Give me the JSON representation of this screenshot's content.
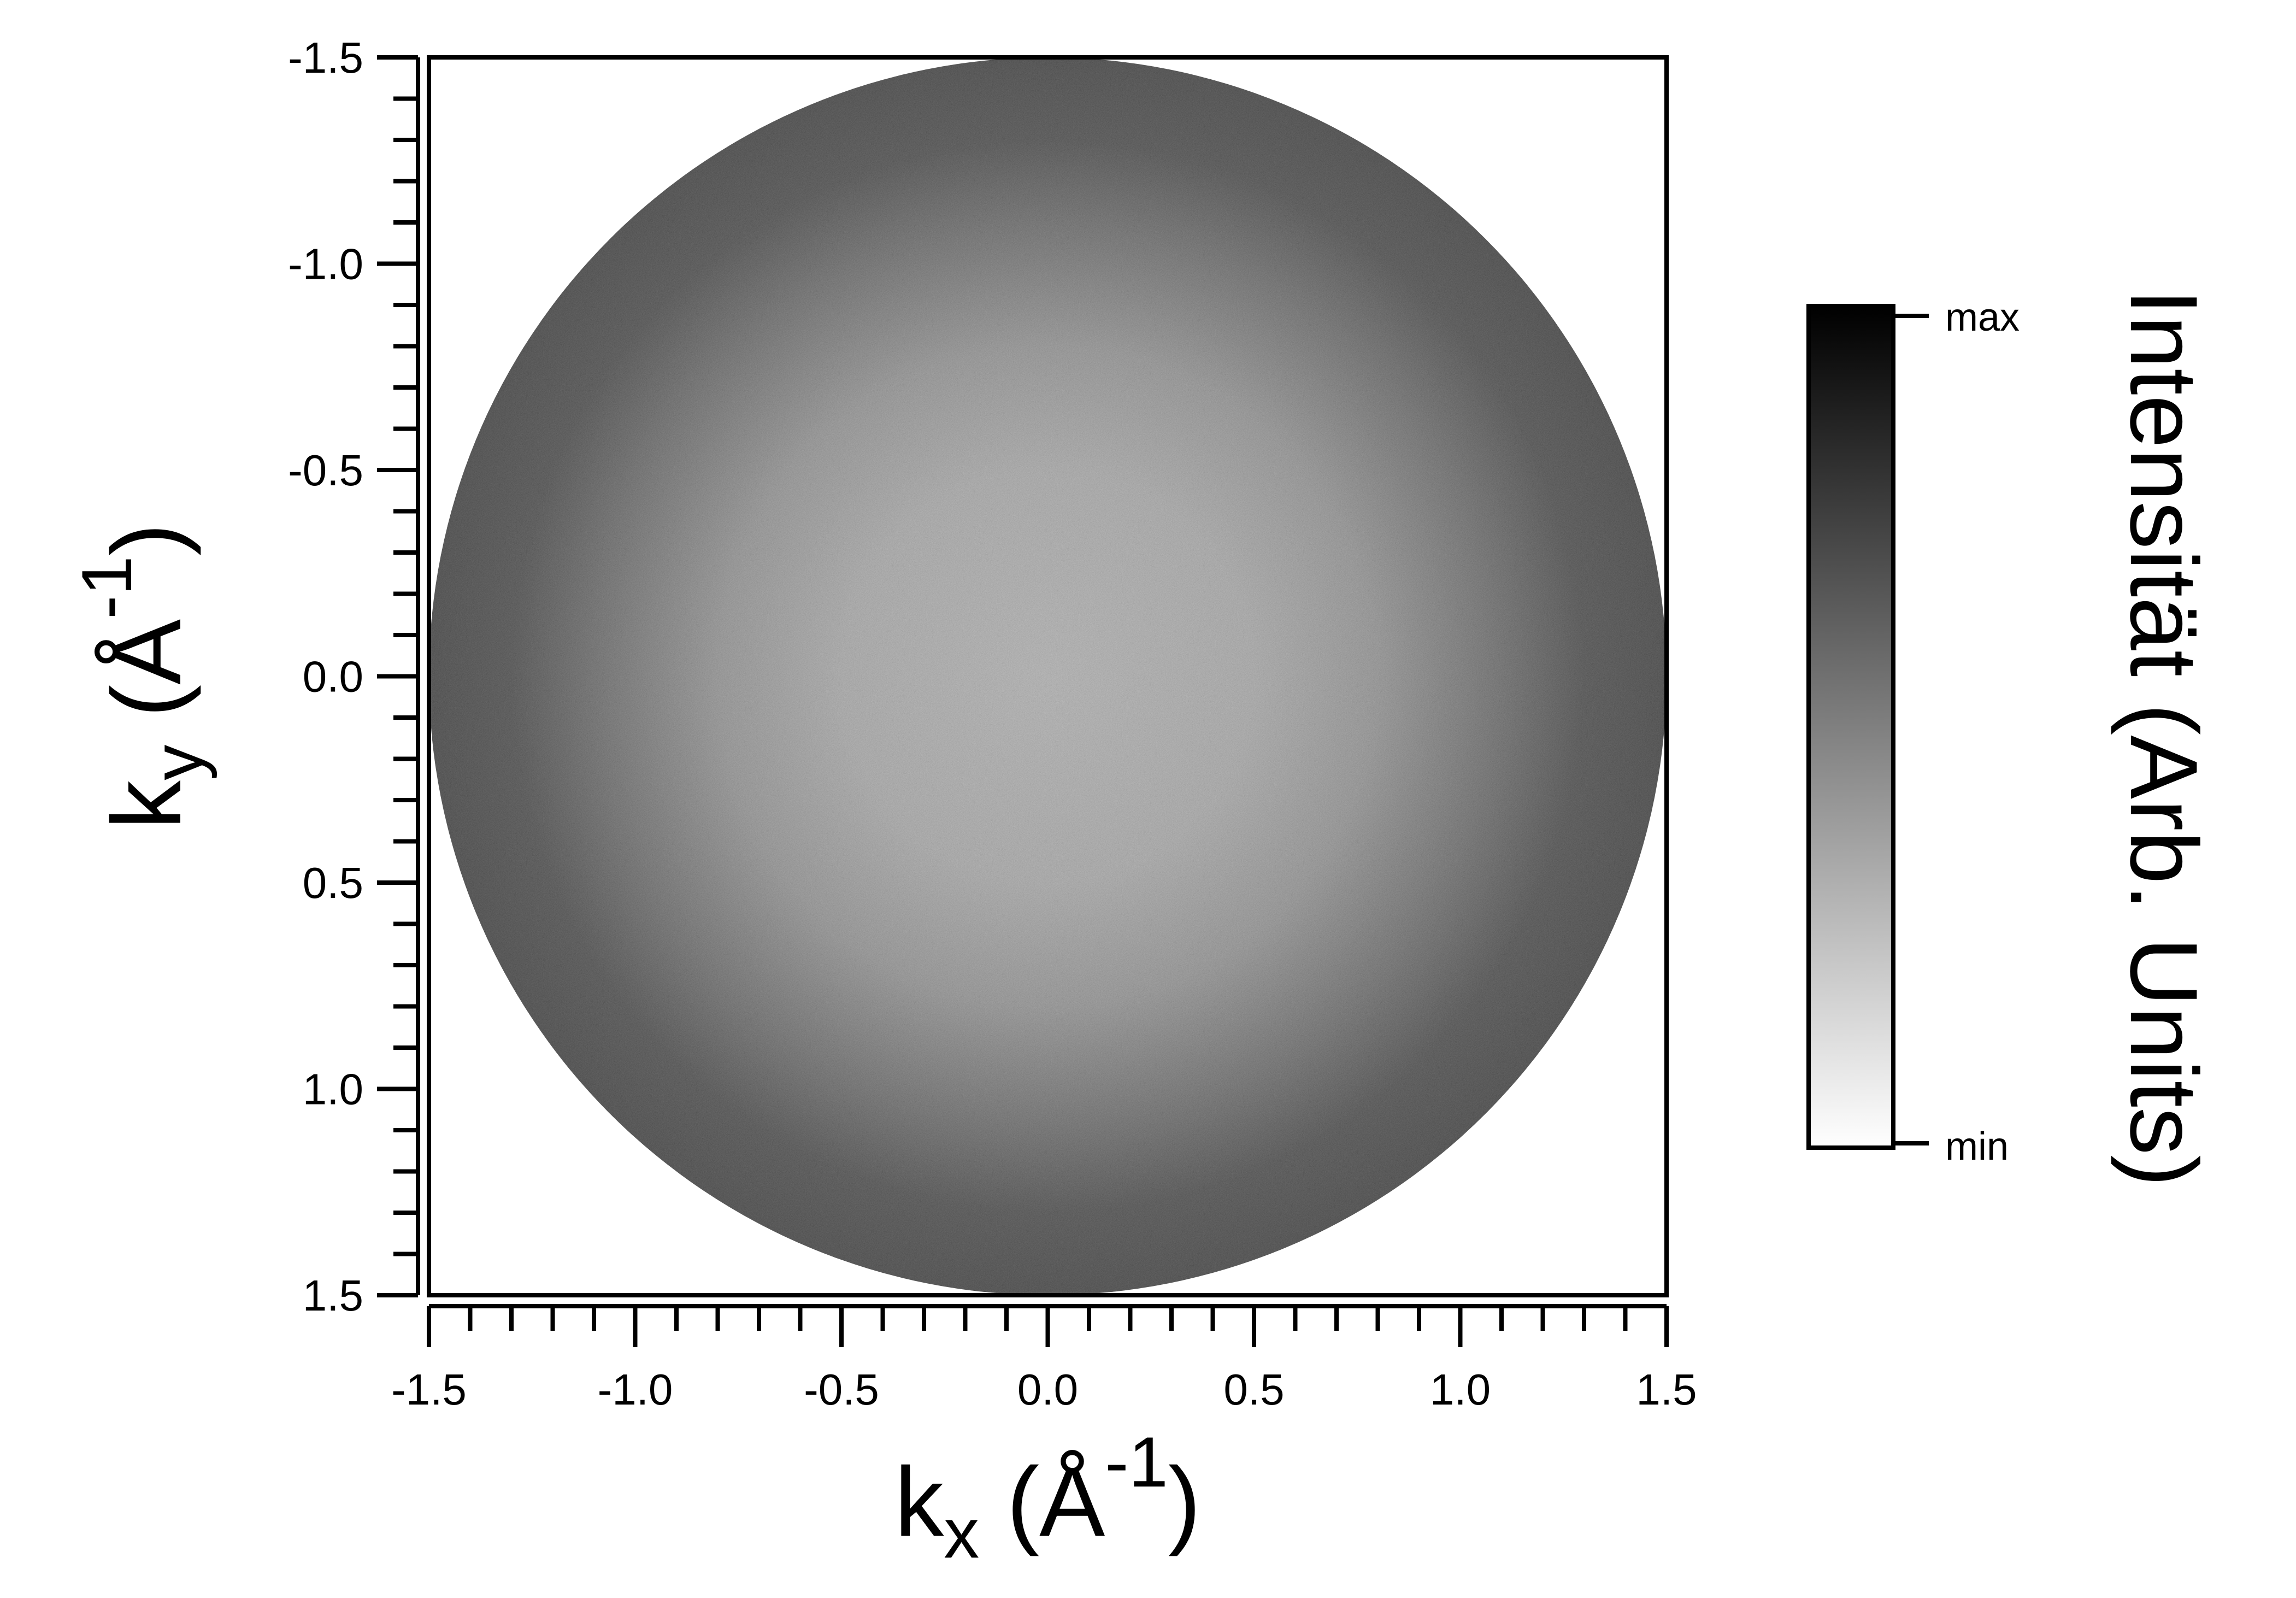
{
  "chart_data": {
    "type": "heatmap",
    "title": "",
    "xlabel": {
      "base": "k",
      "sub": "x",
      "unit": "Å",
      "exp": "-1"
    },
    "ylabel": {
      "base": "k",
      "sub": "y",
      "unit": "Å",
      "exp": "-1"
    },
    "xlim": [
      -1.5,
      1.5
    ],
    "ylim": [
      -1.5,
      1.5
    ],
    "y_inverted": true,
    "x_ticks": [
      -1.5,
      -1.0,
      -0.5,
      0.0,
      0.5,
      1.0,
      1.5
    ],
    "y_ticks": [
      -1.5,
      -1.0,
      -0.5,
      0.0,
      0.5,
      1.0,
      1.5
    ],
    "x_tick_labels": [
      "-1.5",
      "-1.0",
      "-0.5",
      "0.0",
      "0.5",
      "1.0",
      "1.5"
    ],
    "y_tick_labels": [
      "-1.5",
      "-1.0",
      "-0.5",
      "0.0",
      "0.5",
      "1.0",
      "1.5"
    ],
    "minor_tick_step": 0.1,
    "data_region": {
      "shape": "disk",
      "center": [
        0.0,
        0.0
      ],
      "radius": 1.5
    },
    "intensity_profile": {
      "description_values": "relative intensity vs radius |k|",
      "radius": [
        0.0,
        0.5,
        0.8,
        1.1,
        1.3,
        1.5
      ],
      "intensity": [
        0.32,
        0.36,
        0.45,
        0.62,
        0.74,
        0.78
      ]
    },
    "colormap": {
      "name": "grayscale",
      "min_color": "#ffffff",
      "max_color": "#000000"
    },
    "colorbar": {
      "label": "Intensität (Arb. Units)",
      "max_label": "max",
      "min_label": "min"
    },
    "grid": false,
    "legend": "none"
  }
}
